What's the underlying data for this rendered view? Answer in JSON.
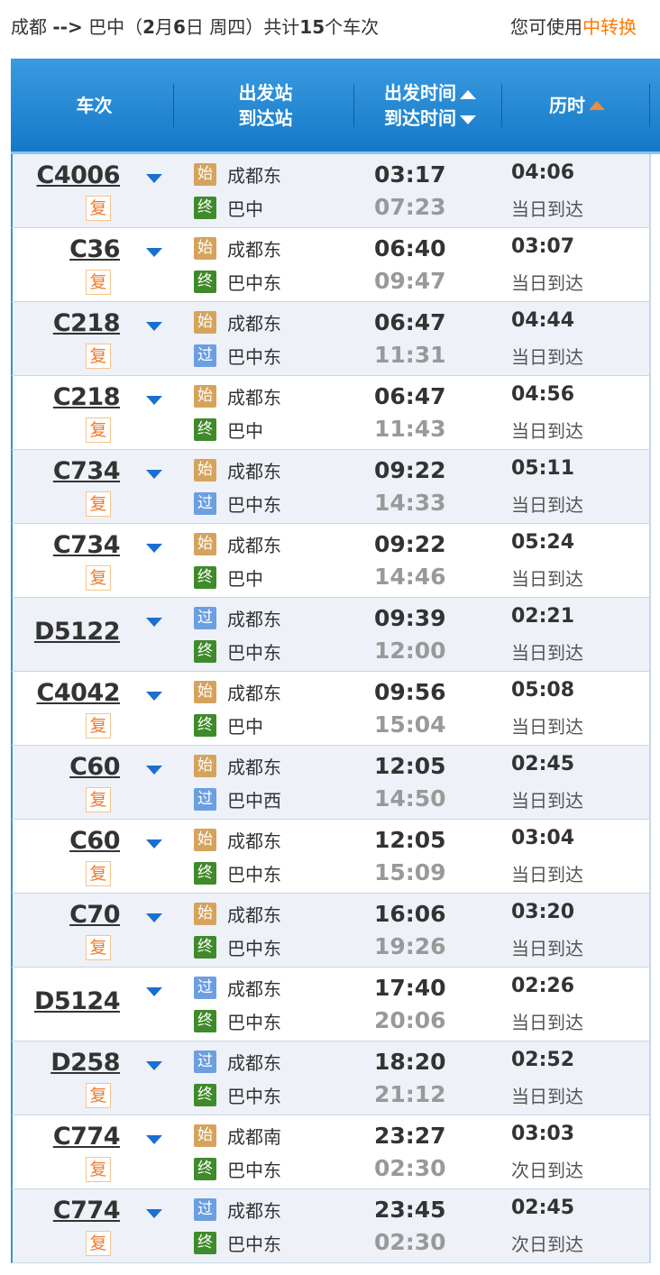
{
  "summary": {
    "from": "成都",
    "arrow": "-->",
    "to": "巴中",
    "open": "（",
    "month": "2",
    "m": "月",
    "day": "6",
    "d": "日",
    "weekday": " 周四）",
    "total_pre": "共计",
    "count": "15",
    "total_post": "个车次"
  },
  "tip": {
    "pre": "您可使用",
    "link": "中转换"
  },
  "header": {
    "train": "车次",
    "dep_station": "出发站",
    "arr_station": "到达站",
    "dep_time": "出发时间",
    "arr_time": "到达时间",
    "duration": "历时"
  },
  "badges": {
    "start": "始",
    "end": "终",
    "pass": "过",
    "fu": "复"
  },
  "colors": {
    "header": "#1f85d0",
    "start": "#d6a35c",
    "end": "#3f8a2a",
    "pass": "#6c9fe0",
    "accent": "#ff7a00"
  },
  "rows": [
    {
      "train": "C4006",
      "fu": true,
      "t1": "start",
      "s1": "成都东",
      "t2": "end",
      "s2": "巴中",
      "dep": "03:17",
      "arr": "07:23",
      "dur": "04:06",
      "day": "当日到达"
    },
    {
      "train": "C36",
      "fu": true,
      "t1": "start",
      "s1": "成都东",
      "t2": "end",
      "s2": "巴中东",
      "dep": "06:40",
      "arr": "09:47",
      "dur": "03:07",
      "day": "当日到达"
    },
    {
      "train": "C218",
      "fu": true,
      "t1": "start",
      "s1": "成都东",
      "t2": "pass",
      "s2": "巴中东",
      "dep": "06:47",
      "arr": "11:31",
      "dur": "04:44",
      "day": "当日到达"
    },
    {
      "train": "C218",
      "fu": true,
      "t1": "start",
      "s1": "成都东",
      "t2": "end",
      "s2": "巴中",
      "dep": "06:47",
      "arr": "11:43",
      "dur": "04:56",
      "day": "当日到达"
    },
    {
      "train": "C734",
      "fu": true,
      "t1": "start",
      "s1": "成都东",
      "t2": "pass",
      "s2": "巴中东",
      "dep": "09:22",
      "arr": "14:33",
      "dur": "05:11",
      "day": "当日到达"
    },
    {
      "train": "C734",
      "fu": true,
      "t1": "start",
      "s1": "成都东",
      "t2": "end",
      "s2": "巴中",
      "dep": "09:22",
      "arr": "14:46",
      "dur": "05:24",
      "day": "当日到达"
    },
    {
      "train": "D5122",
      "fu": false,
      "t1": "pass",
      "s1": "成都东",
      "t2": "end",
      "s2": "巴中东",
      "dep": "09:39",
      "arr": "12:00",
      "dur": "02:21",
      "day": "当日到达"
    },
    {
      "train": "C4042",
      "fu": true,
      "t1": "start",
      "s1": "成都东",
      "t2": "end",
      "s2": "巴中",
      "dep": "09:56",
      "arr": "15:04",
      "dur": "05:08",
      "day": "当日到达"
    },
    {
      "train": "C60",
      "fu": true,
      "t1": "start",
      "s1": "成都东",
      "t2": "pass",
      "s2": "巴中西",
      "dep": "12:05",
      "arr": "14:50",
      "dur": "02:45",
      "day": "当日到达"
    },
    {
      "train": "C60",
      "fu": true,
      "t1": "start",
      "s1": "成都东",
      "t2": "end",
      "s2": "巴中东",
      "dep": "12:05",
      "arr": "15:09",
      "dur": "03:04",
      "day": "当日到达"
    },
    {
      "train": "C70",
      "fu": true,
      "t1": "start",
      "s1": "成都东",
      "t2": "end",
      "s2": "巴中东",
      "dep": "16:06",
      "arr": "19:26",
      "dur": "03:20",
      "day": "当日到达"
    },
    {
      "train": "D5124",
      "fu": false,
      "t1": "pass",
      "s1": "成都东",
      "t2": "end",
      "s2": "巴中东",
      "dep": "17:40",
      "arr": "20:06",
      "dur": "02:26",
      "day": "当日到达"
    },
    {
      "train": "D258",
      "fu": true,
      "t1": "pass",
      "s1": "成都东",
      "t2": "end",
      "s2": "巴中东",
      "dep": "18:20",
      "arr": "21:12",
      "dur": "02:52",
      "day": "当日到达"
    },
    {
      "train": "C774",
      "fu": true,
      "t1": "start",
      "s1": "成都南",
      "t2": "end",
      "s2": "巴中东",
      "dep": "23:27",
      "arr": "02:30",
      "dur": "03:03",
      "day": "次日到达"
    },
    {
      "train": "C774",
      "fu": true,
      "t1": "pass",
      "s1": "成都东",
      "t2": "end",
      "s2": "巴中东",
      "dep": "23:45",
      "arr": "02:30",
      "dur": "02:45",
      "day": "次日到达"
    }
  ]
}
